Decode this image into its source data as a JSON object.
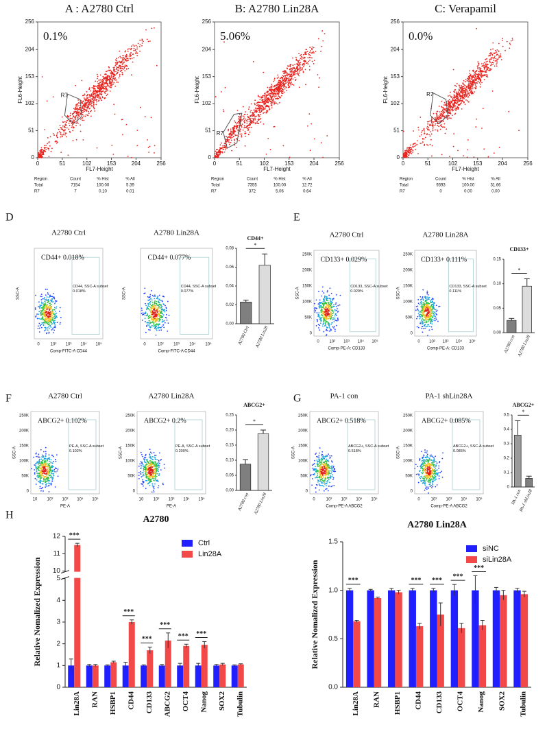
{
  "scatter_panels": [
    {
      "title": "A : A2780 Ctrl",
      "percent": "0.1%",
      "gate": "R7",
      "x_label": "FL7-Height",
      "y_label": "FL6-Height",
      "ticks": [
        0,
        51,
        102,
        153,
        204,
        256
      ],
      "stats": [
        [
          "Region",
          "Count",
          "% Hist",
          "% All"
        ],
        [
          "Total",
          "7154",
          "100.00",
          "5.39"
        ],
        [
          "R7",
          "7",
          "0.10",
          "0.01"
        ]
      ]
    },
    {
      "title": "B:  A2780 Lin28A",
      "percent": "5.06%",
      "gate": "R7",
      "x_label": "FL7-Height",
      "y_label": "FL6-Height",
      "ticks": [
        0,
        51,
        102,
        153,
        204,
        256
      ],
      "stats": [
        [
          "Region",
          "Count",
          "% Hist",
          "% All"
        ],
        [
          "Total",
          "7355",
          "100.00",
          "12.72"
        ],
        [
          "R7",
          "372",
          "5.06",
          "0.64"
        ]
      ]
    },
    {
      "title": "C: Verapamil",
      "percent": "0.0%",
      "gate": "R7",
      "x_label": "FL7-Height",
      "y_label": "FL6-Height",
      "ticks": [
        0,
        51,
        102,
        153,
        204,
        256
      ],
      "stats": [
        [
          "Region",
          "Count",
          "% Hist",
          "% All"
        ],
        [
          "Total",
          "9393",
          "100.00",
          "31.66"
        ],
        [
          "R7",
          "0",
          "0.00",
          "0.00"
        ]
      ]
    }
  ],
  "flow_panels": [
    {
      "letter": "D",
      "x_ticks": [
        "0",
        "10²",
        "10³",
        "10⁴",
        "10⁵"
      ],
      "plots": [
        {
          "title": "A2780 Ctrl",
          "gate_text": "CD44+  0.018%",
          "subset": "CD44, SSC-A subset",
          "subset_pct": "0.018%",
          "x_label": "Comp-FITC-A CD44",
          "y_label": "SSC-A"
        },
        {
          "title": "A2780 Lin28A",
          "gate_text": "CD44+  0.077%",
          "subset": "CD44, SSC-A subset",
          "subset_pct": "0.077%",
          "x_label": "Comp-FITC-A CD44",
          "y_label": "SSC-A"
        }
      ]
    },
    {
      "letter": "E",
      "x_ticks": [
        "0",
        "10²",
        "10³",
        "10⁴",
        "10⁵"
      ],
      "y_ticks": [
        "0",
        "50K",
        "100K",
        "150K",
        "200K",
        "250K"
      ],
      "plots": [
        {
          "title": "A2780 Ctrl",
          "gate_text": "CD133+  0.029%",
          "subset": "CD133, SSC-A subset",
          "subset_pct": "0.029%",
          "x_label": "Comp-PE-A: CD133",
          "y_label": "SSC-A"
        },
        {
          "title": "A2780 Lin28A",
          "gate_text": "CD133+  0.111%",
          "subset": "CD133, SSC-A subset",
          "subset_pct": "0.111%",
          "x_label": "Comp-PE-A: CD133",
          "y_label": "SSC-A"
        }
      ]
    },
    {
      "letter": "F",
      "x_ticks": [
        "10",
        "10²",
        "10³",
        "10⁴",
        "10⁵"
      ],
      "y_ticks": [
        "0",
        "50K",
        "100K",
        "150K",
        "200K",
        "250K"
      ],
      "plots": [
        {
          "title": "A2780 Ctrl",
          "gate_text": "ABCG2+  0.102%",
          "subset": "PE-A, SSC-A subset",
          "subset_pct": "0.102%",
          "x_label": "PE-A",
          "y_label": "SSC-A"
        },
        {
          "title": "A2780 Lin28A",
          "gate_text": "ABCG2+  0.2%",
          "subset": "PE-A, SSC-A subset",
          "subset_pct": "0.200%",
          "x_label": "PE-A",
          "y_label": "SSC-A"
        }
      ]
    },
    {
      "letter": "G",
      "x_ticks": [
        "0",
        "10²",
        "10³",
        "10⁴",
        "10⁵"
      ],
      "y_ticks": [
        "0",
        "50K",
        "100K",
        "150K",
        "200K",
        "250K"
      ],
      "plots": [
        {
          "title": "PA-1 con",
          "gate_text": "ABCG2+ 0.518%",
          "subset": "ABCG2+, SSC-A subset",
          "subset_pct": "0.518%",
          "x_label": "Comp-PE-A ABCG2",
          "y_label": "SSC-A"
        },
        {
          "title": "PA-1 shLin28A",
          "gate_text": "ABCG2+ 0.085%",
          "subset": "ABCG2+, SSC-A subset",
          "subset_pct": "0.085%",
          "x_label": "Comp-PE-A ABCG2",
          "y_label": "SSC-A"
        }
      ]
    }
  ],
  "chart_data": [
    {
      "type": "bar",
      "title": "CD44+",
      "categories": [
        "A2780 Ctrl",
        "A2780 Lin28"
      ],
      "values": [
        0.023,
        0.062
      ],
      "errors": [
        0.002,
        0.012
      ],
      "colors": [
        "#7f7f7f",
        "#dcdcdc"
      ],
      "significance": "*",
      "ylim": [
        0,
        0.08
      ],
      "yticks": [
        {
          "value": 0,
          "label": "0.00"
        },
        {
          "value": 0.02,
          "label": "0.02"
        },
        {
          "value": 0.04,
          "label": "0.04"
        },
        {
          "value": 0.06,
          "label": "0.06"
        },
        {
          "value": 0.08,
          "label": "0.08"
        }
      ]
    },
    {
      "type": "bar",
      "title": "CD133+",
      "categories": [
        "A2780 con",
        "A2780 Lin28"
      ],
      "values": [
        0.025,
        0.095
      ],
      "errors": [
        0.004,
        0.015
      ],
      "colors": [
        "#7f7f7f",
        "#dcdcdc"
      ],
      "significance": "*",
      "ylim": [
        0,
        0.15
      ],
      "yticks": [
        {
          "value": 0,
          "label": "0.00"
        },
        {
          "value": 0.05,
          "label": "0.05"
        },
        {
          "value": 0.1,
          "label": "0.10"
        },
        {
          "value": 0.15,
          "label": "0.15"
        }
      ]
    },
    {
      "type": "bar",
      "title": "ABCG2+",
      "categories": [
        "A2780 con",
        "A2780 Lin28"
      ],
      "values": [
        0.087,
        0.188
      ],
      "errors": [
        0.015,
        0.012
      ],
      "colors": [
        "#7f7f7f",
        "#dcdcdc"
      ],
      "significance": "*",
      "ylim": [
        0,
        0.25
      ],
      "yticks": [
        {
          "value": 0,
          "label": "0.00"
        },
        {
          "value": 0.05,
          "label": "0.05"
        },
        {
          "value": 0.1,
          "label": "0.10"
        },
        {
          "value": 0.15,
          "label": "0.15"
        },
        {
          "value": 0.2,
          "label": "0.20"
        },
        {
          "value": 0.25,
          "label": "0.25"
        }
      ]
    },
    {
      "type": "bar",
      "title": "ABCG2+",
      "categories": [
        "PA-1 con",
        "PA-1 shLin28"
      ],
      "values": [
        0.36,
        0.06
      ],
      "errors": [
        0.1,
        0.015
      ],
      "colors": [
        "#9a9a9a",
        "#7f7f7f"
      ],
      "significance": "*",
      "ylim": [
        0,
        0.5
      ],
      "yticks": [
        0,
        0.1,
        0.2,
        0.3,
        0.4,
        0.5
      ]
    },
    {
      "type": "grouped-bar",
      "panel_label": "H",
      "title": "A2780",
      "y_label": "Relative Nomalized Expression",
      "categories": [
        "Lin28A",
        "RAN",
        "HSBP1",
        "CD44",
        "CD133",
        "ABCG2",
        "OCT4",
        "Nanog",
        "SOX2",
        "Tubulin"
      ],
      "series": [
        {
          "name": "Ctrl",
          "color": "#1f1fff",
          "values": [
            1,
            1,
            1,
            1,
            1,
            1,
            1,
            1,
            1,
            1
          ],
          "errors": [
            0.3,
            0.05,
            0.03,
            0.15,
            0.03,
            0.05,
            0.1,
            0.1,
            0.05,
            0.03
          ]
        },
        {
          "name": "Lin28A",
          "color": "#f24848",
          "values": [
            11.5,
            1.0,
            1.15,
            3.0,
            1.7,
            2.15,
            1.9,
            1.95,
            1.05,
            1.05
          ],
          "errors": [
            0.1,
            0.05,
            0.05,
            0.1,
            0.15,
            0.35,
            0.08,
            0.15,
            0.05,
            0.03
          ]
        }
      ],
      "significance": [
        "***",
        null,
        null,
        "***",
        "***",
        "***",
        "***",
        "***",
        null,
        null
      ],
      "ylim": [
        0,
        12
      ],
      "y_break": [
        5,
        10
      ],
      "yticks": [
        0,
        1,
        2,
        3,
        4,
        5,
        10,
        11,
        12
      ],
      "legend": "upper right"
    },
    {
      "type": "grouped-bar",
      "title": "A2780 Lin28A",
      "y_label": "Relative Nomalized Expression",
      "categories": [
        "Lin28A",
        "RAN",
        "HSBP1",
        "CD44",
        "CD133",
        "OCT4",
        "Nanog",
        "SOX2",
        "Tubulin"
      ],
      "series": [
        {
          "name": "siNC",
          "color": "#1f1fff",
          "values": [
            1,
            1,
            1,
            1,
            1,
            1,
            1,
            1,
            1
          ],
          "errors": [
            0.02,
            0.01,
            0.02,
            0.02,
            0.02,
            0.06,
            0.15,
            0.03,
            0.02
          ]
        },
        {
          "name": "siLin28A",
          "color": "#f24848",
          "values": [
            0.68,
            0.92,
            0.98,
            0.63,
            0.75,
            0.61,
            0.64,
            0.95,
            0.96
          ],
          "errors": [
            0.01,
            0.01,
            0.02,
            0.03,
            0.12,
            0.05,
            0.05,
            0.05,
            0.03
          ]
        }
      ],
      "significance": [
        "***",
        null,
        null,
        "***",
        "***",
        "***",
        "***",
        null,
        null
      ],
      "ylim": [
        0,
        1.5
      ],
      "yticks": [
        {
          "value": 0,
          "label": "0.0"
        },
        {
          "value": 0.5,
          "label": "0.5"
        },
        {
          "value": 1,
          "label": "1.0"
        },
        {
          "value": 1.5,
          "label": "1.5"
        }
      ],
      "legend": "upper right"
    }
  ]
}
